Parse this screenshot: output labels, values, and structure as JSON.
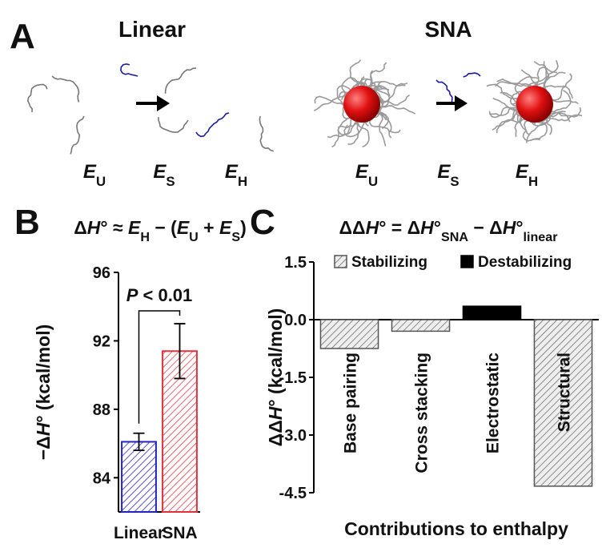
{
  "panel_a": {
    "label": "A",
    "linear": "Linear",
    "sna": "SNA",
    "states": [
      [
        "E",
        "U"
      ],
      [
        "E",
        "S"
      ],
      [
        "E",
        "H"
      ],
      [
        "E",
        "U"
      ],
      [
        "E",
        "S"
      ],
      [
        "E",
        "H"
      ]
    ]
  },
  "panel_b": {
    "label": "B",
    "equation": [
      "Δ",
      "H",
      "° ≈ ",
      "E",
      "H",
      " − (",
      "E",
      "U",
      " + ",
      "E",
      "S",
      ")"
    ]
  },
  "panel_c": {
    "label": "C",
    "equation": [
      "ΔΔ",
      "H",
      "° = Δ",
      "H",
      "°",
      "SNA",
      " − Δ",
      "H",
      "°",
      "linear"
    ]
  },
  "chart_data": [
    {
      "type": "bar",
      "categories": [
        "Linear",
        "SNA"
      ],
      "values": [
        86.1,
        91.4
      ],
      "errors": [
        0.5,
        1.6
      ],
      "colors": [
        "#2323c8",
        "#e8303a"
      ],
      "ylabel": [
        "−Δ",
        "H",
        "° (kcal/mol)"
      ],
      "ylim": [
        82,
        96
      ],
      "yticks": [
        84,
        88,
        92,
        96
      ],
      "annotation": [
        "P",
        " < 0.01"
      ]
    },
    {
      "type": "bar",
      "categories": [
        "Base pairing",
        "Cross stacking",
        "Electrostatic",
        "Structural"
      ],
      "series": [
        {
          "name": "Stabilizing",
          "color": "#555555",
          "values": [
            -0.75,
            -0.3,
            null,
            -4.33
          ]
        },
        {
          "name": "Destabilizing",
          "color": "#000000",
          "values": [
            null,
            null,
            0.35,
            null
          ]
        }
      ],
      "ylabel": [
        "ΔΔ",
        "H",
        "° (kcal/mol)"
      ],
      "xlabel": "Contributions to enthalpy",
      "ylim": [
        -4.5,
        1.5
      ],
      "yticks": [
        1.5,
        {
          "value": 0,
          "label": "0.0"
        },
        -1.5,
        {
          "value": -3,
          "label": "-3.0"
        },
        -4.5
      ]
    }
  ]
}
